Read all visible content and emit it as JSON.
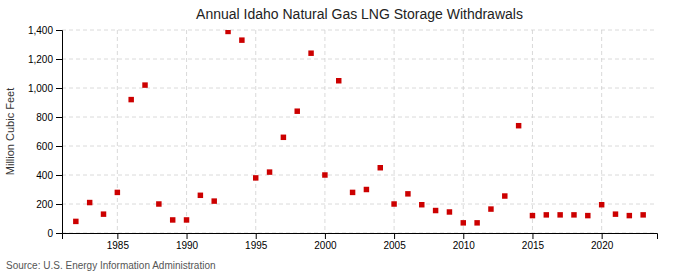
{
  "chart_data": {
    "type": "scatter",
    "title": "Annual Idaho Natural Gas LNG Storage Withdrawals",
    "ylabel": "Million Cubic Feet",
    "annotations": [
      "Source: U.S. Energy Information Administration"
    ],
    "x": [
      1982,
      1983,
      1984,
      1985,
      1986,
      1987,
      1988,
      1989,
      1990,
      1991,
      1992,
      1993,
      1994,
      1995,
      1996,
      1997,
      1998,
      1999,
      2000,
      2001,
      2002,
      2003,
      2004,
      2005,
      2006,
      2007,
      2008,
      2009,
      2010,
      2011,
      2012,
      2013,
      2014,
      2015,
      2016,
      2017,
      2018,
      2019,
      2020,
      2021,
      2022,
      2023
    ],
    "values": [
      80,
      210,
      130,
      280,
      920,
      1020,
      200,
      90,
      90,
      260,
      220,
      1390,
      1330,
      380,
      420,
      660,
      840,
      1240,
      400,
      1050,
      280,
      300,
      450,
      200,
      270,
      195,
      155,
      145,
      70,
      70,
      165,
      255,
      740,
      120,
      125,
      125,
      125,
      120,
      195,
      130,
      120,
      125
    ],
    "color": "#cc0000",
    "marker": "square",
    "xlim": [
      1981,
      2024
    ],
    "xticks": [
      1985,
      1990,
      1995,
      2000,
      2005,
      2010,
      2015,
      2020
    ],
    "ylim": [
      0,
      1400
    ],
    "yticks": [
      0,
      200,
      400,
      600,
      800,
      {
        "value": 1000,
        "label": "1,000"
      },
      {
        "value": 1200,
        "label": "1,200"
      },
      {
        "value": 1400,
        "label": "1,400"
      }
    ],
    "grid": true
  }
}
